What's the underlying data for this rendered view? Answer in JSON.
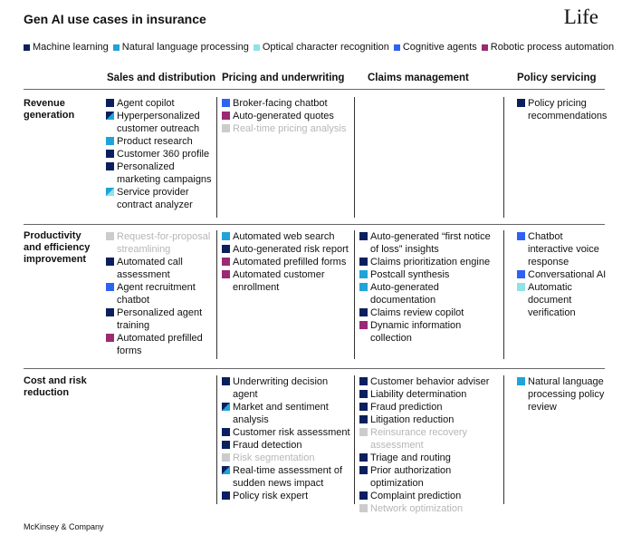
{
  "title": "Gen AI use cases in insurance",
  "subtitle_tag": "Life",
  "footer": "McKinsey & Company",
  "colors": {
    "ml": "#0b1f5e",
    "nlp": "#1fa3d9",
    "ocr": "#8fe3e6",
    "cog": "#2f62f2",
    "rpa": "#9b2a74",
    "faded": "#cccccc"
  },
  "legend": [
    {
      "key": "ml",
      "label": "Machine learning"
    },
    {
      "key": "nlp",
      "label": "Natural language processing"
    },
    {
      "key": "ocr",
      "label": "Optical character recognition"
    },
    {
      "key": "cog",
      "label": "Cognitive agents"
    },
    {
      "key": "rpa",
      "label": "Robotic process automation"
    }
  ],
  "chart_data": {
    "type": "table",
    "columns": [
      "Sales and distribution",
      "Pricing and underwriting",
      "Claims management",
      "Policy servicing"
    ],
    "rows": [
      {
        "label": "Revenue generation",
        "cells": [
          [
            {
              "text": "Agent copilot",
              "tech": [
                "ml"
              ]
            },
            {
              "text": "Hyperpersonalized customer outreach",
              "tech": [
                "ml",
                "nlp"
              ]
            },
            {
              "text": "Product research",
              "tech": [
                "nlp"
              ]
            },
            {
              "text": "Customer 360 profile",
              "tech": [
                "ml"
              ]
            },
            {
              "text": "Personalized marketing campaigns",
              "tech": [
                "ml"
              ]
            },
            {
              "text": "Service provider contract analyzer",
              "tech": [
                "nlp",
                "ocr"
              ]
            }
          ],
          [
            {
              "text": "Broker-facing chatbot",
              "tech": [
                "cog"
              ]
            },
            {
              "text": "Auto-generated quotes",
              "tech": [
                "rpa"
              ]
            },
            {
              "text": "Real-time pricing analysis",
              "tech": [
                "faded"
              ],
              "faded": true
            }
          ],
          [],
          [
            {
              "text": "Policy pricing recommendations",
              "tech": [
                "ml"
              ]
            }
          ]
        ]
      },
      {
        "label": "Productivity and efficiency improvement",
        "cells": [
          [
            {
              "text": "Request-for-proposal streamlining",
              "tech": [
                "faded"
              ],
              "faded": true
            },
            {
              "text": "Automated call assessment",
              "tech": [
                "ml"
              ]
            },
            {
              "text": "Agent recruitment chatbot",
              "tech": [
                "cog"
              ]
            },
            {
              "text": "Personalized agent training",
              "tech": [
                "ml"
              ]
            },
            {
              "text": "Automated prefilled forms",
              "tech": [
                "rpa"
              ]
            }
          ],
          [
            {
              "text": "Automated web search",
              "tech": [
                "nlp"
              ]
            },
            {
              "text": "Auto-generated risk report",
              "tech": [
                "ml"
              ]
            },
            {
              "text": "Automated prefilled forms",
              "tech": [
                "rpa"
              ]
            },
            {
              "text": "Automated customer enrollment",
              "tech": [
                "rpa"
              ]
            }
          ],
          [
            {
              "text": "Auto-generated “first notice of loss” insights",
              "tech": [
                "ml"
              ]
            },
            {
              "text": "Claims prioritization engine",
              "tech": [
                "ml"
              ]
            },
            {
              "text": "Postcall synthesis",
              "tech": [
                "nlp"
              ]
            },
            {
              "text": "Auto-generated documentation",
              "tech": [
                "nlp"
              ]
            },
            {
              "text": "Claims review copilot",
              "tech": [
                "ml"
              ]
            },
            {
              "text": "Dynamic information collection",
              "tech": [
                "rpa"
              ]
            }
          ],
          [
            {
              "text": "Chatbot interactive voice response",
              "tech": [
                "cog"
              ]
            },
            {
              "text": "Conversational AI",
              "tech": [
                "cog"
              ]
            },
            {
              "text": "Automatic document verification",
              "tech": [
                "ocr"
              ]
            }
          ]
        ]
      },
      {
        "label": "Cost and risk reduction",
        "cells": [
          [],
          [
            {
              "text": "Underwriting decision agent",
              "tech": [
                "ml"
              ]
            },
            {
              "text": "Market and sentiment analysis",
              "tech": [
                "ml",
                "nlp"
              ]
            },
            {
              "text": "Customer risk assessment",
              "tech": [
                "ml"
              ]
            },
            {
              "text": "Fraud detection",
              "tech": [
                "ml"
              ]
            },
            {
              "text": "Risk segmentation",
              "tech": [
                "faded"
              ],
              "faded": true
            },
            {
              "text": "Real-time assessment of sudden news impact",
              "tech": [
                "ml",
                "nlp"
              ]
            },
            {
              "text": "Policy risk expert",
              "tech": [
                "ml"
              ]
            }
          ],
          [
            {
              "text": "Customer behavior adviser",
              "tech": [
                "ml"
              ]
            },
            {
              "text": "Liability determination",
              "tech": [
                "ml"
              ]
            },
            {
              "text": "Fraud prediction",
              "tech": [
                "ml"
              ]
            },
            {
              "text": "Litigation reduction",
              "tech": [
                "ml"
              ]
            },
            {
              "text": "Reinsurance recovery assessment",
              "tech": [
                "faded"
              ],
              "faded": true
            },
            {
              "text": "Triage and routing",
              "tech": [
                "ml"
              ]
            },
            {
              "text": "Prior authorization optimization",
              "tech": [
                "ml"
              ]
            },
            {
              "text": "Complaint prediction",
              "tech": [
                "ml"
              ]
            },
            {
              "text": "Network optimization",
              "tech": [
                "faded"
              ],
              "faded": true
            }
          ],
          [
            {
              "text": "Natural language processing policy review",
              "tech": [
                "nlp"
              ]
            }
          ]
        ]
      }
    ]
  }
}
